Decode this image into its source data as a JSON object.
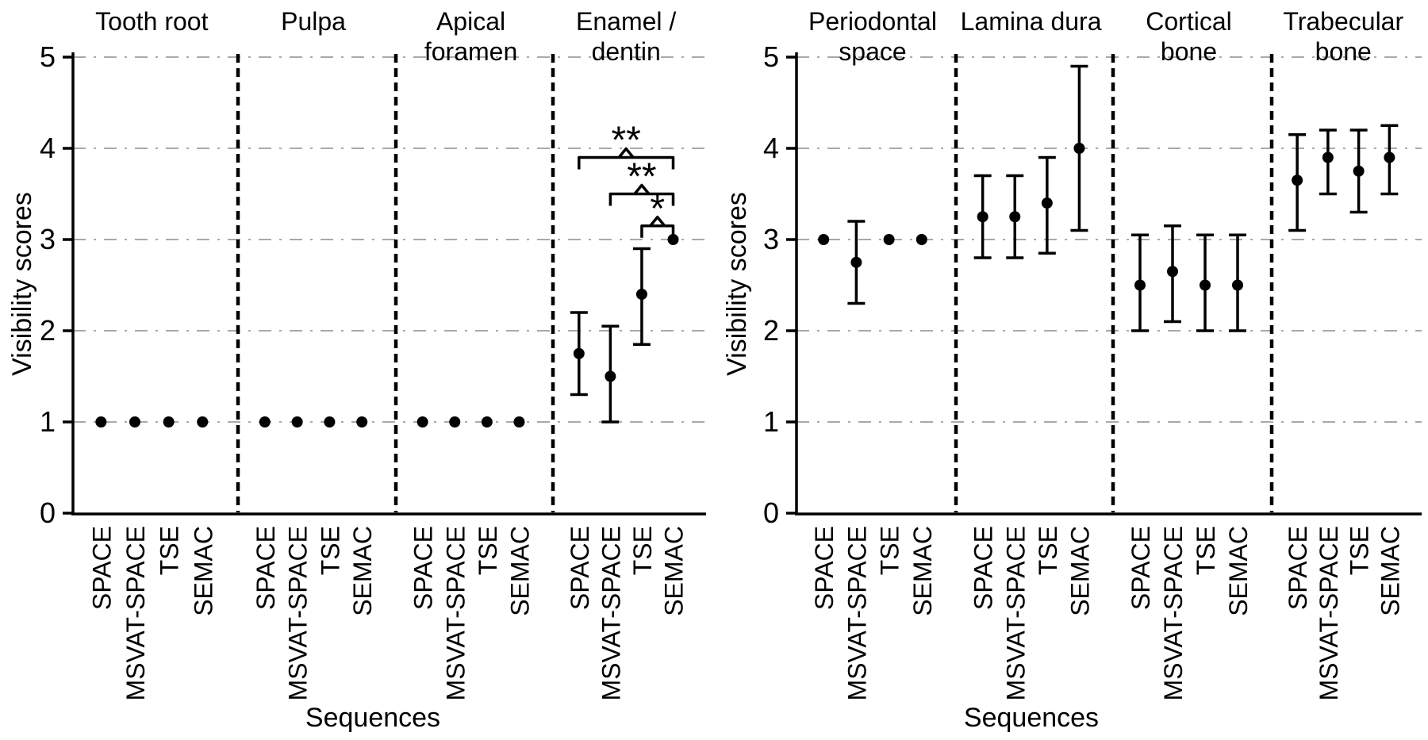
{
  "chart_data": {
    "type": "scatter",
    "xlabel": "Sequences",
    "ylabel": "Visibility scores",
    "ylim": [
      0,
      5
    ],
    "yticks": [
      0,
      1,
      2,
      3,
      4,
      5
    ],
    "grid": true,
    "legend": null,
    "marker": "filled-circle",
    "sequences": [
      "SPACE",
      "MSVAT-SPACE",
      "TSE",
      "SEMAC"
    ],
    "colors": {
      "marker": "#000000",
      "axis": "#000000",
      "grid": "#a9a9a9",
      "background": "#ffffff"
    },
    "panels": [
      {
        "side": "left",
        "ylabel": "Visibility scores",
        "xlabel": "Sequences",
        "groups": [
          {
            "title_lines": [
              "Tooth root"
            ],
            "means": [
              1.0,
              1.0,
              1.0,
              1.0
            ],
            "lo": [
              1.0,
              1.0,
              1.0,
              1.0
            ],
            "hi": [
              1.0,
              1.0,
              1.0,
              1.0
            ]
          },
          {
            "title_lines": [
              "Pulpa"
            ],
            "means": [
              1.0,
              1.0,
              1.0,
              1.0
            ],
            "lo": [
              1.0,
              1.0,
              1.0,
              1.0
            ],
            "hi": [
              1.0,
              1.0,
              1.0,
              1.0
            ]
          },
          {
            "title_lines": [
              "Apical",
              "foramen"
            ],
            "means": [
              1.0,
              1.0,
              1.0,
              1.0
            ],
            "lo": [
              1.0,
              1.0,
              1.0,
              1.0
            ],
            "hi": [
              1.0,
              1.0,
              1.0,
              1.0
            ]
          },
          {
            "title_lines": [
              "Enamel /",
              "dentin"
            ],
            "means": [
              1.75,
              1.5,
              2.4,
              3.0
            ],
            "lo": [
              1.3,
              1.0,
              1.85,
              3.0
            ],
            "hi": [
              2.2,
              2.05,
              2.9,
              3.0
            ],
            "significance": [
              {
                "from": "SPACE",
                "to": "SEMAC",
                "label": "**",
                "y": 3.9
              },
              {
                "from": "MSVAT-SPACE",
                "to": "SEMAC",
                "label": "**",
                "y": 3.5
              },
              {
                "from": "TSE",
                "to": "SEMAC",
                "label": "*",
                "y": 3.15
              }
            ]
          }
        ]
      },
      {
        "side": "right",
        "ylabel": "Visibility scores",
        "xlabel": "Sequences",
        "groups": [
          {
            "title_lines": [
              "Periodontal",
              "space"
            ],
            "means": [
              3.0,
              2.75,
              3.0,
              3.0
            ],
            "lo": [
              3.0,
              2.3,
              3.0,
              3.0
            ],
            "hi": [
              3.0,
              3.2,
              3.0,
              3.0
            ]
          },
          {
            "title_lines": [
              "Lamina dura"
            ],
            "means": [
              3.25,
              3.25,
              3.4,
              4.0
            ],
            "lo": [
              2.8,
              2.8,
              2.85,
              3.1
            ],
            "hi": [
              3.7,
              3.7,
              3.9,
              4.9
            ]
          },
          {
            "title_lines": [
              "Cortical",
              "bone"
            ],
            "means": [
              2.5,
              2.65,
              2.5,
              2.5
            ],
            "lo": [
              2.0,
              2.1,
              2.0,
              2.0
            ],
            "hi": [
              3.05,
              3.15,
              3.05,
              3.05
            ]
          },
          {
            "title_lines": [
              "Trabecular",
              "bone"
            ],
            "means": [
              3.65,
              3.9,
              3.75,
              3.9
            ],
            "lo": [
              3.1,
              3.5,
              3.3,
              3.5
            ],
            "hi": [
              4.15,
              4.2,
              4.2,
              4.25
            ]
          }
        ]
      }
    ]
  }
}
